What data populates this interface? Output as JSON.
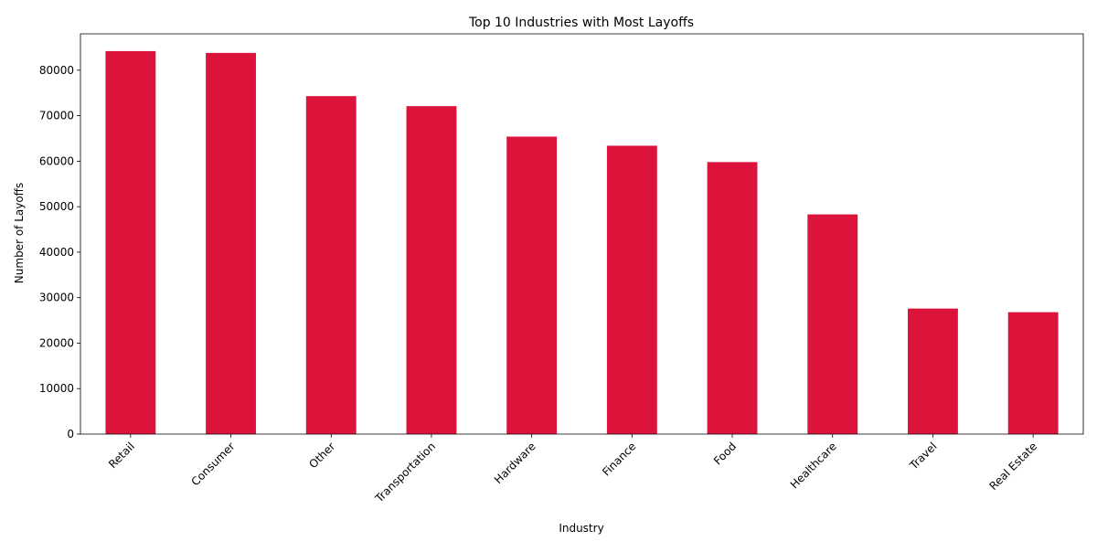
{
  "chart_data": {
    "type": "bar",
    "title": "Top 10 Industries with Most Layoffs",
    "xlabel": "Industry",
    "ylabel": "Number of Layoffs",
    "categories": [
      "Retail",
      "Consumer",
      "Other",
      "Transportation",
      "Hardware",
      "Finance",
      "Food",
      "Healthcare",
      "Travel",
      "Real Estate"
    ],
    "values": [
      84200,
      83800,
      74300,
      72100,
      65400,
      63400,
      59800,
      48300,
      27600,
      26800
    ],
    "ylim": [
      0,
      88000
    ],
    "yticks": [
      0,
      10000,
      20000,
      30000,
      40000,
      50000,
      60000,
      70000,
      80000
    ],
    "ytick_labels": [
      "0",
      "10000",
      "20000",
      "30000",
      "40000",
      "50000",
      "60000",
      "70000",
      "80000"
    ],
    "bar_color": "#dc143c",
    "grid": false,
    "legend": "none",
    "xtick_rotation": 45
  }
}
